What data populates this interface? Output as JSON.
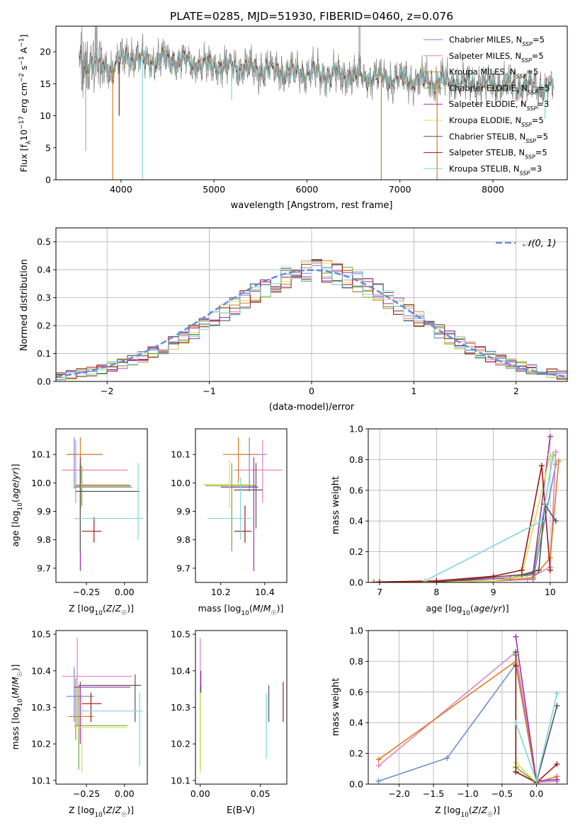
{
  "figure_title": "PLATE=0285, MJD=51930, FIBERID=0460, z=0.076",
  "colors": {
    "chabrier_miles": "#6a8ed8",
    "salpeter_miles": "#e383c4",
    "kroupa_miles": "#e07b1f",
    "chabrier_elodie": "#6aaa3a",
    "salpeter_elodie": "#9b2fb0",
    "kroupa_elodie": "#d6e24a",
    "chabrier_stelib": "#555555",
    "salpeter_stelib": "#a01616",
    "kroupa_stelib": "#7fd6dc",
    "data_spectrum": "#808080",
    "gaussian": "#6a8ed8",
    "grid": "#b0b0b0"
  },
  "chart_data": [
    {
      "id": "spectrum",
      "type": "line",
      "title": "PLATE=0285, MJD=51930, FIBERID=0460, z=0.076",
      "xlabel": "wavelength [Angstrom, rest frame]",
      "ylabel": "Flux [f_λ10^-17 erg cm^-2 s^-1 A^-1]",
      "xlim": [
        3300,
        8800
      ],
      "ylim": [
        0,
        24
      ],
      "xticks": [
        4000,
        5000,
        6000,
        7000,
        8000
      ],
      "yticks": [
        0,
        5,
        10,
        15,
        20
      ],
      "grid": false,
      "legend_position": "top-right",
      "continuum": {
        "x": [
          3550,
          3700,
          3900,
          4100,
          4300,
          4500,
          4700,
          4900,
          5100,
          5300,
          5500,
          5700,
          5900,
          6100,
          6300,
          6500,
          6700,
          6900,
          7100,
          7300,
          7500,
          7700,
          7900,
          8100,
          8300,
          8500,
          8650
        ],
        "y": [
          18.0,
          18.5,
          17.5,
          19.5,
          18.5,
          19.0,
          18.5,
          18.0,
          17.8,
          17.5,
          17.3,
          17.0,
          16.8,
          16.6,
          16.4,
          16.2,
          16.0,
          15.8,
          15.6,
          15.4,
          15.3,
          15.1,
          15.0,
          14.9,
          14.7,
          14.5,
          14.4
        ]
      },
      "series": [
        {
          "name": "Chabrier MILES, N_SSP=5",
          "color_key": "chabrier_miles"
        },
        {
          "name": "Salpeter MILES, N_SSP=5",
          "color_key": "salpeter_miles"
        },
        {
          "name": "Kroupa MILES, N_SSP=5",
          "color_key": "kroupa_miles"
        },
        {
          "name": "Chabrier ELODIE, N_SSP=5",
          "color_key": "chabrier_elodie"
        },
        {
          "name": "Salpeter ELODIE, N_SSP=3",
          "color_key": "salpeter_elodie"
        },
        {
          "name": "Kroupa ELODIE, N_SSP=5",
          "color_key": "kroupa_elodie"
        },
        {
          "name": "Chabrier STELIB, N_SSP=5",
          "color_key": "chabrier_stelib"
        },
        {
          "name": "Salpeter STELIB, N_SSP=5",
          "color_key": "salpeter_stelib"
        },
        {
          "name": "Kroupa STELIB, N_SSP=3",
          "color_key": "kroupa_stelib"
        }
      ]
    },
    {
      "id": "residuals",
      "type": "step",
      "xlabel": "(data-model)/error",
      "ylabel": "Normed distribution",
      "xlim": [
        -2.5,
        2.5
      ],
      "ylim": [
        0,
        0.55
      ],
      "xticks": [
        -2,
        -1,
        0,
        1,
        2
      ],
      "yticks": [
        0.0,
        0.1,
        0.2,
        0.3,
        0.4,
        0.5
      ],
      "grid": true,
      "legend_position": "top-right",
      "legend": "N(0,1)",
      "bin_edges_start": -2.5,
      "bin_width": 0.1,
      "base_values": [
        0.018,
        0.023,
        0.03,
        0.036,
        0.044,
        0.053,
        0.064,
        0.076,
        0.089,
        0.104,
        0.12,
        0.138,
        0.158,
        0.178,
        0.2,
        0.223,
        0.246,
        0.27,
        0.293,
        0.316,
        0.337,
        0.356,
        0.372,
        0.385,
        0.394,
        0.398,
        0.394,
        0.385,
        0.372,
        0.356,
        0.337,
        0.316,
        0.293,
        0.27,
        0.246,
        0.223,
        0.2,
        0.178,
        0.158,
        0.138,
        0.12,
        0.104,
        0.089,
        0.076,
        0.064,
        0.053,
        0.044,
        0.036,
        0.03,
        0.023
      ]
    },
    {
      "id": "age-vs-z",
      "type": "errorbar",
      "xlabel": "Z [log10(Z/Z☉)]",
      "ylabel": "age [log10(age/yr)]",
      "xlim": [
        -0.45,
        0.15
      ],
      "ylim": [
        9.65,
        10.19
      ],
      "xticks": [
        -0.25,
        0.0
      ],
      "yticks": [
        9.7,
        9.8,
        9.9,
        10.0,
        10.1
      ],
      "points": [
        {
          "color_key": "chabrier_miles",
          "x": -0.33,
          "xlo": -0.38,
          "xhi": -0.15,
          "y": 10.1,
          "ylo": 9.98,
          "yhi": 10.16
        },
        {
          "color_key": "salpeter_miles",
          "x": -0.32,
          "xlo": -0.41,
          "xhi": 0.02,
          "y": 10.045,
          "ylo": 9.93,
          "yhi": 10.15
        },
        {
          "color_key": "kroupa_miles",
          "x": -0.29,
          "xlo": -0.38,
          "xhi": -0.14,
          "y": 10.1,
          "ylo": 10.0,
          "yhi": 10.16
        },
        {
          "color_key": "chabrier_elodie",
          "x": -0.28,
          "xlo": -0.33,
          "xhi": 0.05,
          "y": 9.985,
          "ylo": 9.92,
          "yhi": 10.06
        },
        {
          "color_key": "salpeter_elodie",
          "x": -0.29,
          "xlo": -0.32,
          "xhi": 0.04,
          "y": 9.99,
          "ylo": 9.69,
          "yhi": 10.09
        },
        {
          "color_key": "kroupa_elodie",
          "x": -0.285,
          "xlo": -0.33,
          "xhi": 0.03,
          "y": 9.995,
          "ylo": 9.91,
          "yhi": 10.09
        },
        {
          "color_key": "chabrier_stelib",
          "x": -0.29,
          "xlo": -0.32,
          "xhi": 0.1,
          "y": 9.97,
          "ylo": 9.76,
          "yhi": 10.07
        },
        {
          "color_key": "salpeter_stelib",
          "x": -0.2,
          "xlo": -0.28,
          "xhi": -0.15,
          "y": 9.83,
          "ylo": 9.79,
          "yhi": 9.88
        },
        {
          "color_key": "kroupa_stelib",
          "x": 0.09,
          "xlo": -0.33,
          "xhi": 0.12,
          "y": 9.875,
          "ylo": 9.8,
          "yhi": 10.07
        }
      ]
    },
    {
      "id": "age-vs-mass",
      "type": "errorbar",
      "xlabel": "mass [log10(M/M☉)]",
      "ylabel": "",
      "xlim": [
        10.085,
        10.5
      ],
      "ylim": [
        9.65,
        10.19
      ],
      "xticks": [
        10.2,
        10.4
      ],
      "yticks": [
        9.7,
        9.8,
        9.9,
        10.0,
        10.1
      ],
      "points": [
        {
          "color_key": "chabrier_miles",
          "x": 10.33,
          "xlo": 10.26,
          "xhi": 10.41,
          "y": 10.1,
          "ylo": 9.97,
          "yhi": 10.16
        },
        {
          "color_key": "salpeter_miles",
          "x": 10.39,
          "xlo": 10.26,
          "xhi": 10.48,
          "y": 10.045,
          "ylo": 9.93,
          "yhi": 10.15
        },
        {
          "color_key": "kroupa_miles",
          "x": 10.28,
          "xlo": 10.21,
          "xhi": 10.37,
          "y": 10.1,
          "ylo": 10.0,
          "yhi": 10.16
        },
        {
          "color_key": "chabrier_elodie",
          "x": 10.25,
          "xlo": 10.13,
          "xhi": 10.36,
          "y": 9.99,
          "ylo": 9.76,
          "yhi": 10.07
        },
        {
          "color_key": "salpeter_elodie",
          "x": 10.35,
          "xlo": 10.2,
          "xhi": 10.37,
          "y": 9.985,
          "ylo": 9.69,
          "yhi": 10.09
        },
        {
          "color_key": "kroupa_elodie",
          "x": 10.24,
          "xlo": 10.12,
          "xhi": 10.34,
          "y": 9.995,
          "ylo": 9.91,
          "yhi": 10.08
        },
        {
          "color_key": "chabrier_stelib",
          "x": 10.36,
          "xlo": 10.26,
          "xhi": 10.39,
          "y": 9.975,
          "ylo": 9.84,
          "yhi": 10.07
        },
        {
          "color_key": "salpeter_stelib",
          "x": 10.31,
          "xlo": 10.26,
          "xhi": 10.34,
          "y": 9.83,
          "ylo": 9.79,
          "yhi": 9.92
        },
        {
          "color_key": "kroupa_stelib",
          "x": 10.29,
          "xlo": 10.14,
          "xhi": 10.34,
          "y": 9.875,
          "ylo": 9.8,
          "yhi": 10.02
        }
      ]
    },
    {
      "id": "mass-weight-vs-age",
      "type": "line",
      "xlabel": "age [log10(age/yr)]",
      "ylabel": "mass weight",
      "xlim": [
        6.8,
        10.3
      ],
      "ylim": [
        0,
        1
      ],
      "xticks": [
        7,
        8,
        9,
        10
      ],
      "yticks": [
        0.0,
        0.2,
        0.4,
        0.6,
        0.8,
        1.0
      ],
      "grid": true,
      "series": [
        {
          "color_key": "chabrier_miles",
          "x": [
            6.9,
            8.0,
            9.0,
            9.7,
            10.1
          ],
          "y": [
            0.003,
            0.004,
            0.01,
            0.02,
            0.77
          ]
        },
        {
          "color_key": "salpeter_miles",
          "x": [
            6.9,
            8.0,
            9.0,
            9.6,
            10.0,
            10.1
          ],
          "y": [
            0.002,
            0.003,
            0.01,
            0.02,
            0.1,
            0.85
          ]
        },
        {
          "color_key": "kroupa_miles",
          "x": [
            6.9,
            8.0,
            9.0,
            9.7,
            10.0,
            10.15
          ],
          "y": [
            0.002,
            0.003,
            0.01,
            0.03,
            0.16,
            0.79
          ]
        },
        {
          "color_key": "chabrier_elodie",
          "x": [
            8.0,
            9.0,
            9.7,
            10.05
          ],
          "y": [
            0.002,
            0.01,
            0.05,
            0.83
          ]
        },
        {
          "color_key": "salpeter_elodie",
          "x": [
            8.0,
            9.3,
            9.7,
            10.0
          ],
          "y": [
            0.003,
            0.03,
            0.06,
            0.95
          ]
        },
        {
          "color_key": "kroupa_elodie",
          "x": [
            8.0,
            9.0,
            9.5,
            10.0
          ],
          "y": [
            0.002,
            0.01,
            0.04,
            0.83
          ]
        },
        {
          "color_key": "chabrier_stelib",
          "x": [
            8.0,
            9.5,
            9.8,
            9.9,
            10.1
          ],
          "y": [
            0.002,
            0.05,
            0.08,
            0.51,
            0.4
          ]
        },
        {
          "color_key": "salpeter_stelib",
          "x": [
            7.0,
            8.0,
            9.0,
            9.5,
            9.85,
            10.0
          ],
          "y": [
            0.003,
            0.01,
            0.04,
            0.08,
            0.76,
            0.08
          ]
        },
        {
          "color_key": "kroupa_stelib",
          "x": [
            7.8,
            9.85,
            10.05
          ],
          "y": [
            0.01,
            0.4,
            0.82
          ]
        }
      ]
    },
    {
      "id": "mass-vs-z",
      "type": "errorbar",
      "xlabel": "Z [log10(Z/Z☉)]",
      "ylabel": "mass [log10(M/M☉)]",
      "xlim": [
        -0.45,
        0.15
      ],
      "ylim": [
        10.09,
        10.51
      ],
      "xticks": [
        -0.25,
        0.0
      ],
      "yticks": [
        10.1,
        10.2,
        10.3,
        10.4,
        10.5
      ],
      "points": [
        {
          "color_key": "chabrier_miles",
          "x": -0.33,
          "xlo": -0.38,
          "xhi": -0.2,
          "y": 10.33,
          "ylo": 10.26,
          "yhi": 10.41
        },
        {
          "color_key": "salpeter_miles",
          "x": -0.31,
          "xlo": -0.41,
          "xhi": 0.05,
          "y": 10.385,
          "ylo": 10.25,
          "yhi": 10.49
        },
        {
          "color_key": "kroupa_miles",
          "x": -0.32,
          "xlo": -0.37,
          "xhi": -0.2,
          "y": 10.275,
          "ylo": 10.21,
          "yhi": 10.38
        },
        {
          "color_key": "chabrier_elodie",
          "x": -0.3,
          "xlo": -0.33,
          "xhi": 0.02,
          "y": 10.25,
          "ylo": 10.13,
          "yhi": 10.36
        },
        {
          "color_key": "salpeter_elodie",
          "x": -0.29,
          "xlo": -0.33,
          "xhi": 0.04,
          "y": 10.355,
          "ylo": 10.2,
          "yhi": 10.37
        },
        {
          "color_key": "kroupa_elodie",
          "x": -0.28,
          "xlo": -0.33,
          "xhi": 0.02,
          "y": 10.245,
          "ylo": 10.12,
          "yhi": 10.34
        },
        {
          "color_key": "chabrier_stelib",
          "x": 0.07,
          "xlo": -0.3,
          "xhi": 0.11,
          "y": 10.36,
          "ylo": 10.26,
          "yhi": 10.39
        },
        {
          "color_key": "salpeter_stelib",
          "x": -0.22,
          "xlo": -0.28,
          "xhi": -0.15,
          "y": 10.31,
          "ylo": 10.26,
          "yhi": 10.34
        },
        {
          "color_key": "kroupa_stelib",
          "x": 0.1,
          "xlo": -0.31,
          "xhi": 0.12,
          "y": 10.29,
          "ylo": 10.14,
          "yhi": 10.34
        }
      ]
    },
    {
      "id": "mass-vs-ebv",
      "type": "errorbar",
      "xlabel": "E(B-V)",
      "ylabel": "",
      "xlim": [
        -0.004,
        0.072
      ],
      "ylim": [
        10.09,
        10.51
      ],
      "xticks": [
        0.0,
        0.05
      ],
      "yticks": [
        10.1,
        10.2,
        10.3,
        10.4,
        10.5
      ],
      "points": [
        {
          "color_key": "salpeter_miles",
          "x": 0.0,
          "y": 10.39,
          "ylo": 10.35,
          "yhi": 10.49
        },
        {
          "color_key": "chabrier_elodie",
          "x": 0.0,
          "y": 10.25,
          "ylo": 10.13,
          "yhi": 10.36
        },
        {
          "color_key": "salpeter_elodie",
          "x": 0.0005,
          "y": 10.355,
          "ylo": 10.34,
          "yhi": 10.4
        },
        {
          "color_key": "kroupa_elodie",
          "x": 0.0,
          "y": 10.245,
          "ylo": 10.12,
          "yhi": 10.34
        },
        {
          "color_key": "kroupa_stelib",
          "x": 0.055,
          "y": 10.29,
          "ylo": 10.16,
          "yhi": 10.34
        },
        {
          "color_key": "chabrier_stelib",
          "x": 0.057,
          "y": 10.31,
          "ylo": 10.26,
          "yhi": 10.36
        },
        {
          "color_key": "salpeter_stelib",
          "x": 0.069,
          "y": 10.31,
          "ylo": 10.26,
          "yhi": 10.37
        }
      ]
    },
    {
      "id": "mass-weight-vs-z",
      "type": "line",
      "xlabel": "Z [log10(Z/Z☉)]",
      "ylabel": "mass weight",
      "xlim": [
        -2.45,
        0.45
      ],
      "ylim": [
        0,
        1
      ],
      "xticks": [
        -2.0,
        -1.5,
        -1.0,
        -0.5,
        0.0
      ],
      "yticks": [
        0.0,
        0.2,
        0.4,
        0.6,
        0.8,
        1.0
      ],
      "grid": true,
      "series": [
        {
          "color_key": "chabrier_miles",
          "x": [
            -2.3,
            -1.3,
            -0.3,
            0.0,
            0.3
          ],
          "y": [
            0.02,
            0.17,
            0.78,
            0.01,
            0.02
          ]
        },
        {
          "color_key": "salpeter_miles",
          "x": [
            -2.3,
            -0.3,
            0.0,
            0.3
          ],
          "y": [
            0.12,
            0.86,
            0.01,
            0.02
          ]
        },
        {
          "color_key": "kroupa_miles",
          "x": [
            -2.3,
            -0.3,
            0.0,
            0.3
          ],
          "y": [
            0.16,
            0.8,
            0.01,
            0.05
          ]
        },
        {
          "color_key": "chabrier_elodie",
          "x": [
            -0.3,
            -0.3,
            0.0
          ],
          "y": [
            0.84,
            0.11,
            0.01
          ]
        },
        {
          "color_key": "salpeter_elodie",
          "x": [
            -0.3,
            0.0,
            0.3
          ],
          "y": [
            0.96,
            0.02,
            0.03
          ]
        },
        {
          "color_key": "kroupa_elodie",
          "x": [
            -0.3,
            -0.3,
            0.0
          ],
          "y": [
            0.8,
            0.14,
            0.01
          ]
        },
        {
          "color_key": "chabrier_stelib",
          "x": [
            -0.3,
            -0.3,
            0.0,
            0.3
          ],
          "y": [
            0.86,
            0.08,
            0.01,
            0.51
          ]
        },
        {
          "color_key": "salpeter_stelib",
          "x": [
            -0.3,
            -0.3,
            0.0,
            0.3
          ],
          "y": [
            0.77,
            0.08,
            0.01,
            0.13
          ]
        },
        {
          "color_key": "kroupa_stelib",
          "x": [
            -0.3,
            0.0,
            0.3
          ],
          "y": [
            0.4,
            0.02,
            0.59
          ]
        }
      ]
    }
  ]
}
